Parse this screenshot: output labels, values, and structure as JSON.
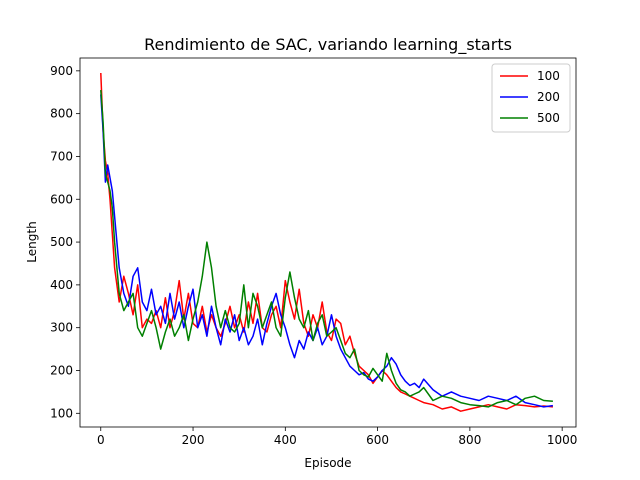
{
  "chart_data": {
    "type": "line",
    "title": "Rendimiento de SAC, variando learning_starts",
    "xlabel": "Episode",
    "ylabel": "Length",
    "xlim": [
      -45,
      1030
    ],
    "ylim": [
      68,
      930
    ],
    "xticks": [
      0,
      200,
      400,
      600,
      800,
      1000
    ],
    "yticks": [
      100,
      200,
      300,
      400,
      500,
      600,
      700,
      800,
      900
    ],
    "grid": false,
    "legend_position": "top-right",
    "series": [
      {
        "name": "100",
        "color": "#ff0000",
        "x": [
          0,
          5,
          10,
          15,
          20,
          25,
          30,
          35,
          40,
          50,
          60,
          70,
          80,
          90,
          100,
          110,
          120,
          130,
          140,
          150,
          160,
          170,
          180,
          190,
          200,
          210,
          220,
          230,
          240,
          250,
          260,
          270,
          280,
          290,
          300,
          310,
          320,
          330,
          340,
          350,
          360,
          370,
          380,
          390,
          400,
          410,
          420,
          430,
          440,
          450,
          460,
          470,
          480,
          490,
          500,
          510,
          520,
          530,
          540,
          550,
          560,
          570,
          580,
          590,
          600,
          610,
          620,
          630,
          640,
          650,
          660,
          670,
          680,
          690,
          700,
          720,
          740,
          760,
          780,
          800,
          820,
          840,
          860,
          880,
          900,
          920,
          940,
          960,
          980
        ],
        "y": [
          895,
          760,
          690,
          660,
          600,
          520,
          440,
          400,
          360,
          420,
          380,
          330,
          400,
          300,
          320,
          310,
          340,
          300,
          370,
          300,
          340,
          410,
          320,
          380,
          310,
          300,
          350,
          290,
          330,
          300,
          280,
          310,
          350,
          300,
          330,
          290,
          360,
          310,
          380,
          300,
          290,
          330,
          350,
          300,
          410,
          360,
          320,
          390,
          310,
          280,
          330,
          300,
          360,
          290,
          270,
          320,
          310,
          260,
          280,
          240,
          210,
          200,
          190,
          170,
          185,
          200,
          190,
          175,
          160,
          150,
          145,
          140,
          135,
          130,
          125,
          120,
          110,
          115,
          105,
          110,
          115,
          120,
          115,
          110,
          120,
          118,
          115,
          117,
          115
        ]
      },
      {
        "name": "200",
        "color": "#0000ff",
        "x": [
          0,
          5,
          10,
          15,
          20,
          25,
          30,
          35,
          40,
          50,
          60,
          70,
          80,
          90,
          100,
          110,
          120,
          130,
          140,
          150,
          160,
          170,
          180,
          190,
          200,
          210,
          220,
          230,
          240,
          250,
          260,
          270,
          280,
          290,
          300,
          310,
          320,
          330,
          340,
          350,
          360,
          370,
          380,
          390,
          400,
          410,
          420,
          430,
          440,
          450,
          460,
          470,
          480,
          490,
          500,
          510,
          520,
          530,
          540,
          550,
          560,
          570,
          580,
          590,
          600,
          610,
          620,
          630,
          640,
          650,
          660,
          670,
          680,
          690,
          700,
          720,
          740,
          760,
          780,
          800,
          820,
          840,
          860,
          880,
          900,
          920,
          940,
          960,
          980
        ],
        "y": [
          845,
          760,
          640,
          680,
          650,
          620,
          560,
          500,
          440,
          380,
          350,
          420,
          440,
          360,
          340,
          390,
          330,
          350,
          310,
          380,
          320,
          360,
          300,
          350,
          390,
          300,
          330,
          280,
          350,
          300,
          260,
          320,
          290,
          330,
          270,
          300,
          260,
          280,
          320,
          260,
          310,
          350,
          380,
          330,
          300,
          260,
          230,
          270,
          250,
          290,
          270,
          300,
          260,
          280,
          330,
          280,
          250,
          230,
          210,
          200,
          190,
          195,
          180,
          175,
          185,
          200,
          210,
          230,
          215,
          190,
          175,
          165,
          170,
          160,
          180,
          155,
          140,
          150,
          140,
          135,
          130,
          140,
          135,
          130,
          140,
          125,
          120,
          115,
          118
        ]
      },
      {
        "name": "500",
        "color": "#008000",
        "x": [
          0,
          5,
          10,
          15,
          20,
          25,
          30,
          35,
          40,
          50,
          60,
          70,
          80,
          90,
          100,
          110,
          120,
          130,
          140,
          150,
          160,
          170,
          180,
          190,
          200,
          210,
          220,
          230,
          240,
          250,
          260,
          270,
          280,
          290,
          300,
          310,
          320,
          330,
          340,
          350,
          360,
          370,
          380,
          390,
          400,
          410,
          420,
          430,
          440,
          450,
          460,
          470,
          480,
          490,
          500,
          510,
          520,
          530,
          540,
          550,
          560,
          570,
          580,
          590,
          600,
          610,
          620,
          630,
          640,
          650,
          660,
          670,
          680,
          690,
          700,
          720,
          740,
          760,
          780,
          800,
          820,
          840,
          860,
          880,
          900,
          920,
          940,
          960,
          980
        ],
        "y": [
          855,
          780,
          660,
          640,
          620,
          580,
          500,
          440,
          380,
          340,
          360,
          380,
          300,
          280,
          310,
          340,
          300,
          250,
          290,
          320,
          280,
          300,
          330,
          270,
          320,
          360,
          420,
          500,
          440,
          350,
          300,
          340,
          300,
          290,
          310,
          400,
          300,
          380,
          350,
          300,
          330,
          360,
          300,
          280,
          370,
          430,
          370,
          320,
          300,
          340,
          270,
          310,
          330,
          280,
          290,
          300,
          270,
          240,
          230,
          250,
          200,
          190,
          185,
          205,
          190,
          175,
          240,
          200,
          170,
          155,
          150,
          140,
          145,
          150,
          160,
          130,
          140,
          135,
          125,
          120,
          118,
          115,
          125,
          130,
          120,
          135,
          140,
          130,
          128
        ]
      }
    ]
  }
}
